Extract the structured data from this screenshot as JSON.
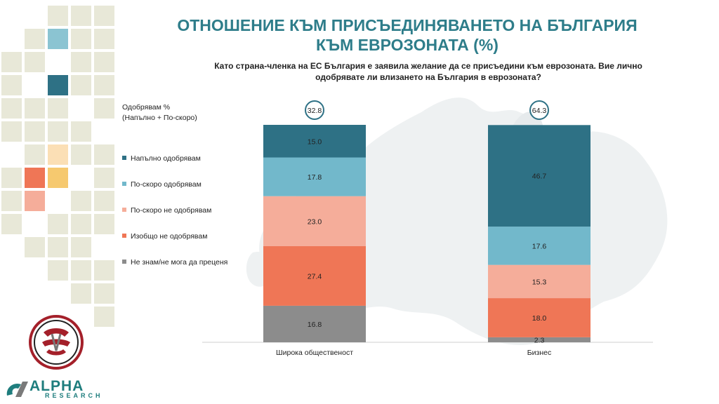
{
  "title": "ОТНОШЕНИЕ КЪМ ПРИСЪЕДИНЯВАНЕТО НА БЪЛГАРИЯ КЪМ ЕВРОЗОНАТА (%)",
  "subtitle": "Като страна-членка на ЕС България е заявила желание да се присъедини към еврозоната. Вие лично одобрявате ли влизането на България в еврозоната?",
  "approve_label_line1": "Одобрявам %",
  "approve_label_line2": "(Напълно + По-скоро)",
  "logo": {
    "brand": "ALPHA",
    "sub": "RESEARCH"
  },
  "colors": {
    "full_approve": "#2e7185",
    "rather_approve": "#72b8cb",
    "rather_not": "#f5ad9a",
    "not_at_all": "#ef7656",
    "dont_know": "#8c8c8c",
    "accent": "#2e7d8a"
  },
  "chart_data": {
    "type": "bar",
    "stacked": true,
    "title": "ОТНОШЕНИЕ КЪМ ПРИСЪЕДИНЯВАНЕТО НА БЪЛГАРИЯ КЪМ ЕВРОЗОНАТА (%)",
    "categories": [
      "Широка общественост",
      "Бизнес"
    ],
    "approve_totals": [
      "32.8",
      "64.3"
    ],
    "series": [
      {
        "name": "Напълно одобрявам",
        "key": "full_approve",
        "values": [
          15.0,
          46.7
        ]
      },
      {
        "name": "По-скоро одобрявам",
        "key": "rather_approve",
        "values": [
          17.8,
          17.6
        ]
      },
      {
        "name": "По-скоро не одобрявам",
        "key": "rather_not",
        "values": [
          23.0,
          15.3
        ]
      },
      {
        "name": "Изобщо не одобрявам",
        "key": "not_at_all",
        "values": [
          27.4,
          18.0
        ]
      },
      {
        "name": "Не знам/не мога да преценя",
        "key": "dont_know",
        "values": [
          16.8,
          2.3
        ]
      }
    ],
    "ylim": [
      0,
      100
    ],
    "legend": "left"
  }
}
